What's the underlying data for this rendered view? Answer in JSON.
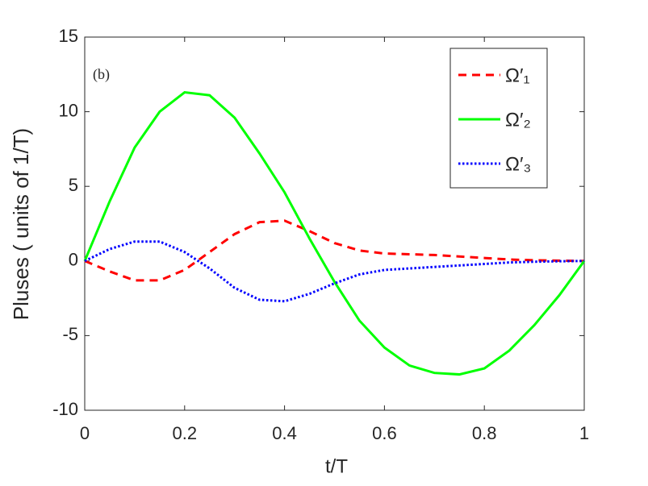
{
  "chart_data": {
    "type": "line",
    "ylabel": "Pluses ( units of 1/T)",
    "xlabel": "t/T",
    "annotation": "(b)",
    "x": [
      0,
      0.05,
      0.1,
      0.15,
      0.2,
      0.25,
      0.3,
      0.35,
      0.4,
      0.45,
      0.5,
      0.55,
      0.6,
      0.65,
      0.7,
      0.75,
      0.8,
      0.85,
      0.9,
      0.95,
      1
    ],
    "series": [
      {
        "name": "Ω′₁",
        "color": "#ff0000",
        "dash": "10,7",
        "values": [
          0,
          -0.7,
          -1.3,
          -1.3,
          -0.6,
          0.6,
          1.8,
          2.6,
          2.7,
          2.0,
          1.2,
          0.7,
          0.5,
          0.45,
          0.4,
          0.3,
          0.2,
          0.1,
          0.05,
          0.02,
          0
        ]
      },
      {
        "name": "Ω′₂",
        "color": "#00ff00",
        "dash": "none",
        "values": [
          0,
          4.0,
          7.6,
          10.0,
          11.3,
          11.1,
          9.6,
          7.2,
          4.6,
          1.5,
          -1.4,
          -4.0,
          -5.8,
          -7.0,
          -7.5,
          -7.6,
          -7.2,
          -6.0,
          -4.3,
          -2.3,
          0
        ]
      },
      {
        "name": "Ω′₃",
        "color": "#0000ff",
        "dash": "2.5,2.5",
        "values": [
          0,
          0.8,
          1.3,
          1.3,
          0.6,
          -0.5,
          -1.8,
          -2.6,
          -2.7,
          -2.2,
          -1.5,
          -0.9,
          -0.6,
          -0.5,
          -0.4,
          -0.3,
          -0.2,
          -0.1,
          -0.05,
          -0.02,
          0
        ]
      }
    ],
    "xlim": [
      0,
      1
    ],
    "xticks": [
      0,
      0.2,
      0.4,
      0.6,
      0.8,
      1
    ],
    "ylim": [
      -10,
      15
    ],
    "yticks": [
      -10,
      -5,
      0,
      5,
      10,
      15
    ],
    "legend": "upper right"
  }
}
